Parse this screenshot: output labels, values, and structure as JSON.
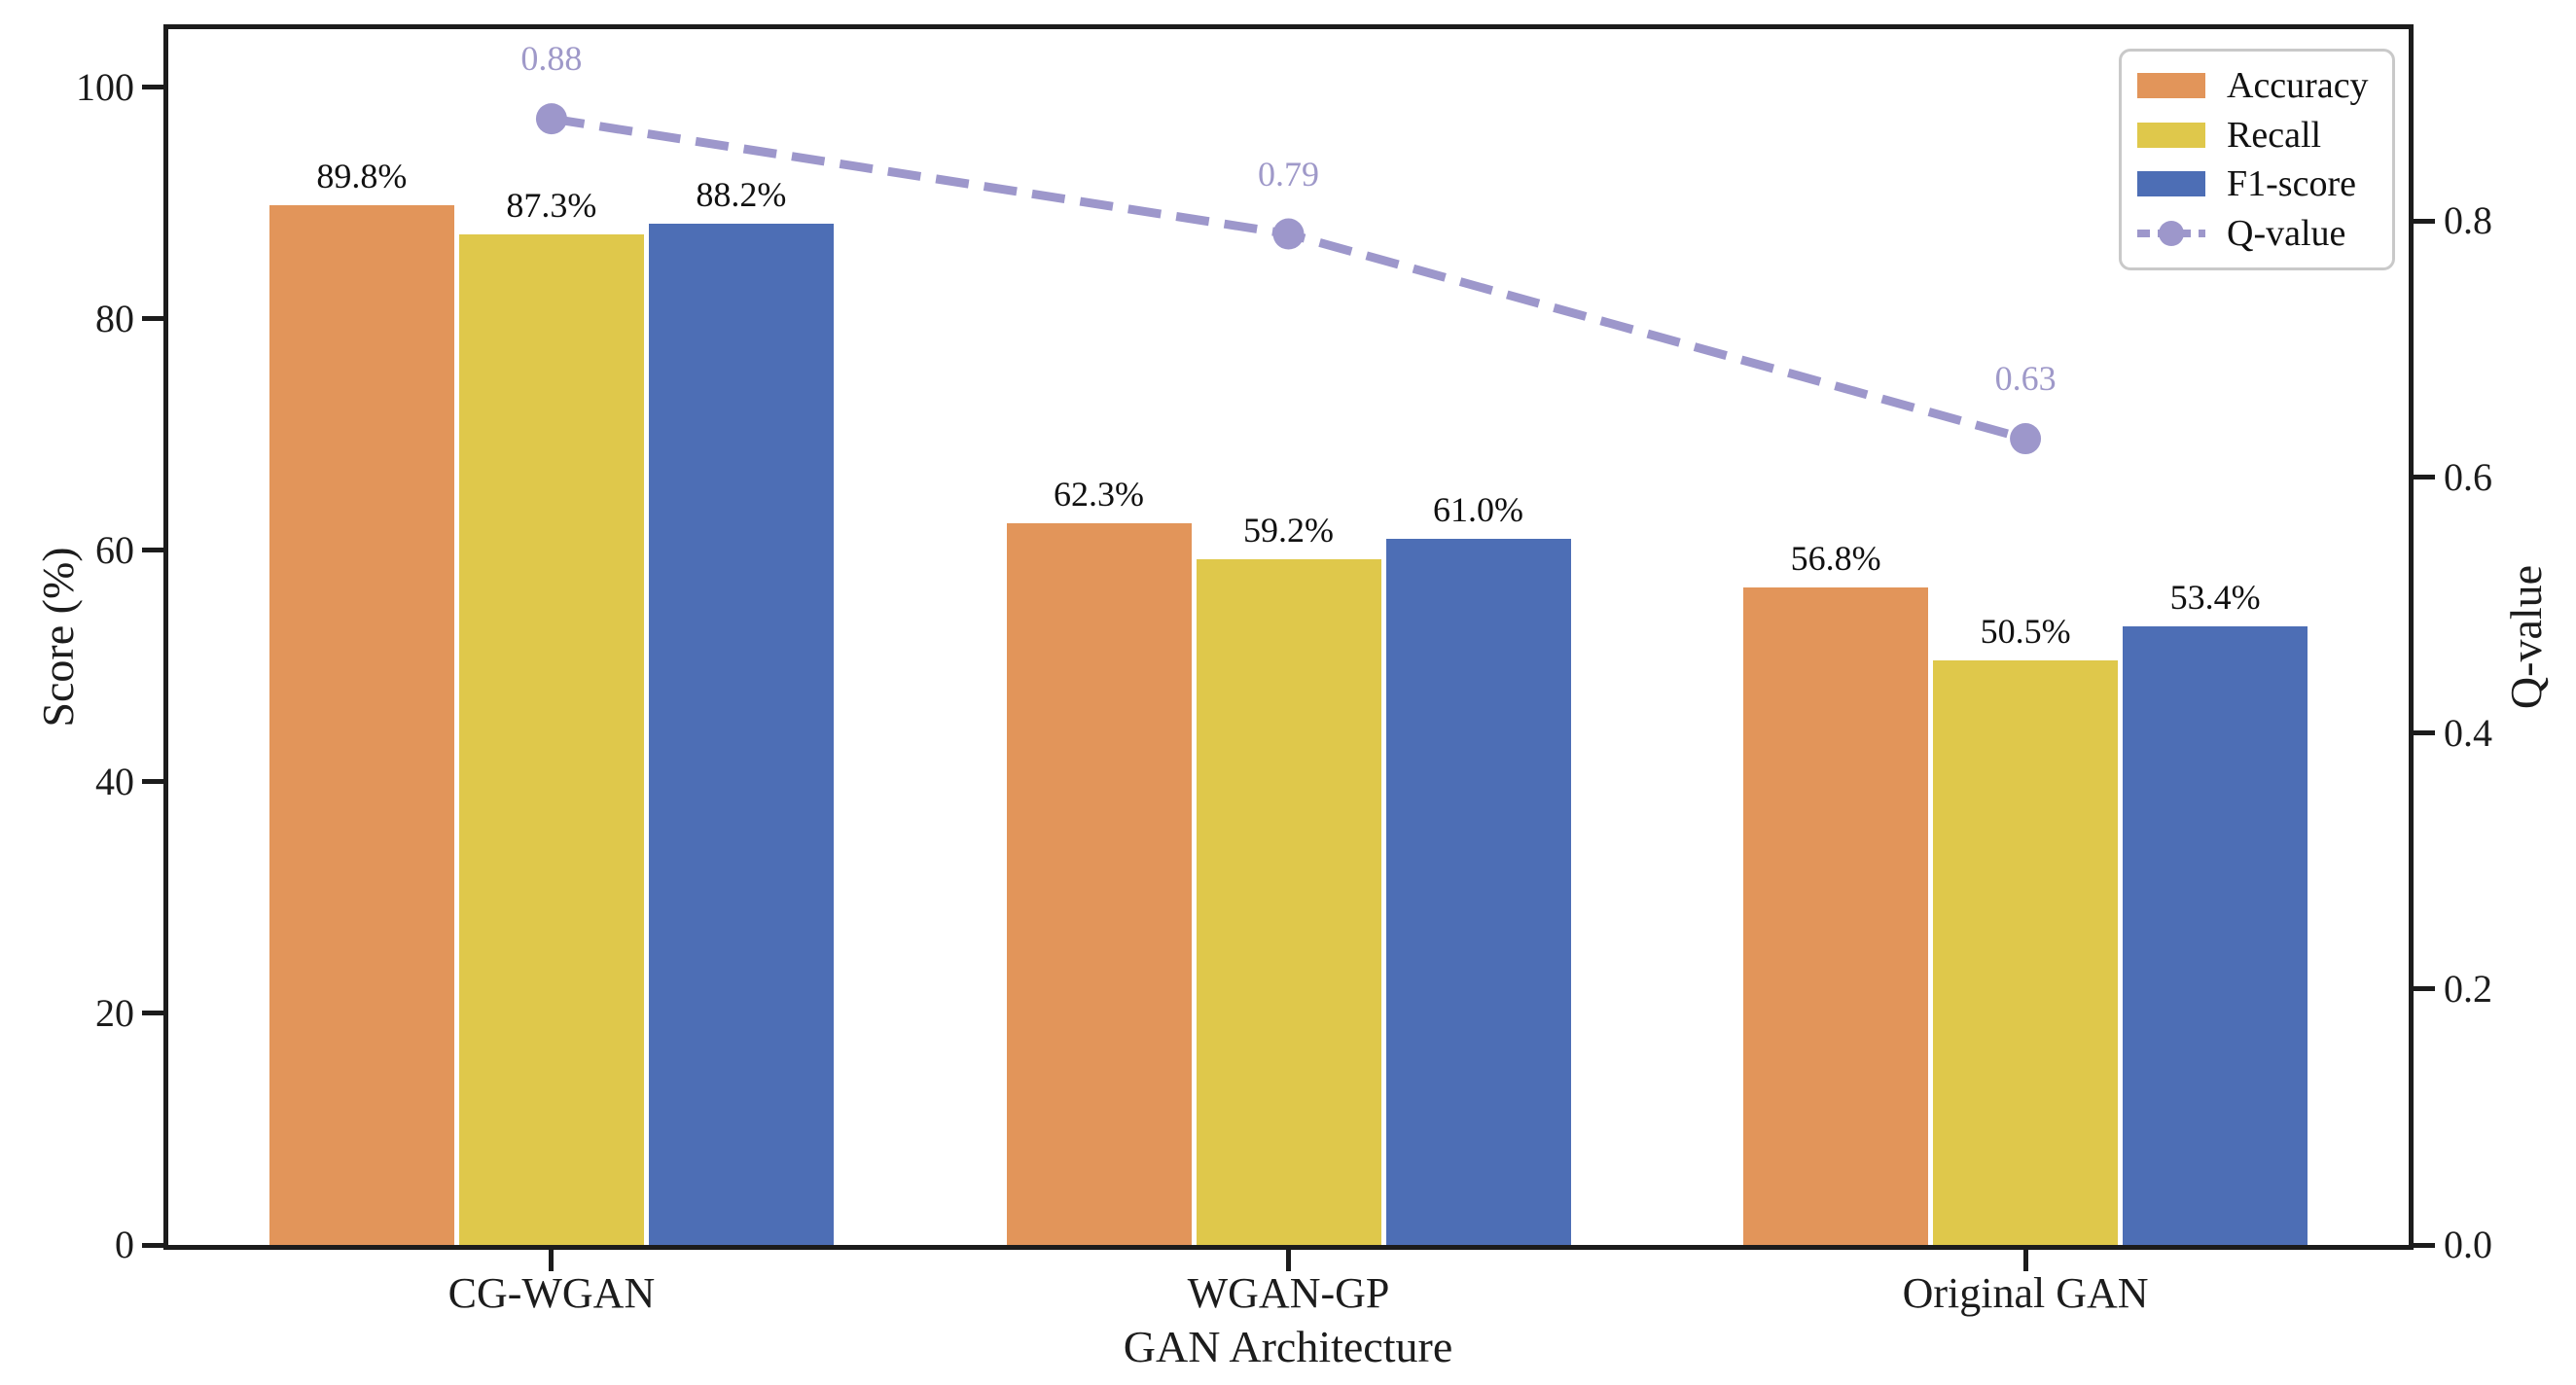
{
  "chart_data": {
    "type": "bar",
    "categories": [
      "CG-WGAN",
      "WGAN-GP",
      "Original GAN"
    ],
    "series": [
      {
        "name": "Accuracy",
        "color": "#E2955A",
        "values": [
          89.8,
          62.3,
          56.8
        ],
        "labels": [
          "89.8%",
          "62.3%",
          "56.8%"
        ]
      },
      {
        "name": "Recall",
        "color": "#DFC84B",
        "values": [
          87.3,
          59.2,
          50.5
        ],
        "labels": [
          "87.3%",
          "59.2%",
          "50.5%"
        ]
      },
      {
        "name": "F1-score",
        "color": "#4D6EB5",
        "values": [
          88.2,
          61.0,
          53.4
        ],
        "labels": [
          "88.2%",
          "61.0%",
          "53.4%"
        ]
      }
    ],
    "line_series": {
      "name": "Q-value",
      "type": "dashed-line",
      "color": "#9D97CB",
      "label_color": "#9F99C9",
      "values": [
        0.88,
        0.79,
        0.63
      ],
      "labels": [
        "0.88",
        "0.79",
        "0.63"
      ]
    },
    "xlabel": "GAN Architecture",
    "ylabel_left": "Score (%)",
    "ylabel_right": "Q-value",
    "yticks_left": [
      "0",
      "20",
      "40",
      "60",
      "80",
      "100"
    ],
    "ytick_values_left": [
      0,
      20,
      40,
      60,
      80,
      100
    ],
    "yticks_right": [
      "0.0",
      "0.2",
      "0.4",
      "0.6",
      "0.8"
    ],
    "ytick_values_right": [
      0.0,
      0.2,
      0.4,
      0.6,
      0.8
    ],
    "ylim_left": [
      0,
      105
    ],
    "ylim_right": [
      0,
      0.95
    ],
    "grid": false,
    "legend_position": "upper right",
    "legend_entries": [
      "Accuracy",
      "Recall",
      "F1-score",
      "Q-value"
    ]
  }
}
